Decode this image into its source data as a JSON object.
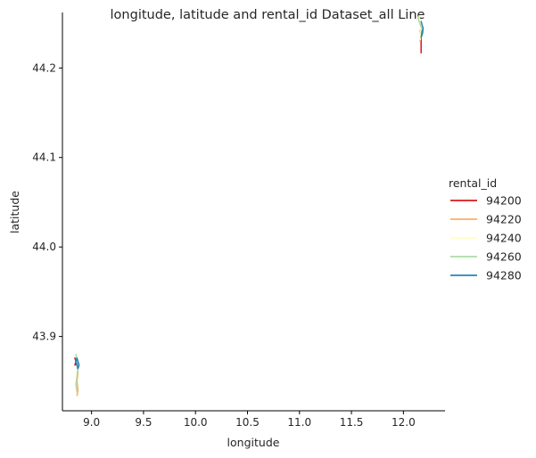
{
  "chart_data": {
    "type": "line",
    "title": "longitude, latitude and rental_id Dataset_all Line",
    "xlabel": "longitude",
    "ylabel": "latitude",
    "xlim": [
      8.72,
      12.4
    ],
    "ylim": [
      43.817,
      44.262
    ],
    "x_ticks": [
      9.0,
      9.5,
      10.0,
      10.5,
      11.0,
      11.5,
      12.0
    ],
    "x_tick_labels": [
      "9.0",
      "9.5",
      "10.0",
      "10.5",
      "11.0",
      "11.5",
      "12.0"
    ],
    "y_ticks": [
      43.9,
      44.0,
      44.1,
      44.2
    ],
    "y_tick_labels": [
      "43.9",
      "44.0",
      "44.1",
      "44.2"
    ],
    "grid": false,
    "legend": {
      "title": "rental_id",
      "placement": "outside right",
      "entries": [
        "94200",
        "94220",
        "94240",
        "94260",
        "94280"
      ]
    },
    "series": [
      {
        "name": "94200",
        "color": "#d7191c",
        "clusters": [
          {
            "x": [
              8.84,
              8.85,
              8.84,
              8.86,
              8.85
            ],
            "y": [
              43.876,
              43.872,
              43.868,
              43.87,
              43.874
            ]
          },
          {
            "x": [
              12.17,
              12.17,
              12.17
            ],
            "y": [
              44.236,
              44.226,
              44.217
            ]
          }
        ]
      },
      {
        "name": "94220",
        "color": "#fdae61",
        "clusters": [
          {
            "x": [
              8.86,
              8.87,
              8.86,
              8.87,
              8.86
            ],
            "y": [
              43.868,
              43.86,
              43.85,
              43.84,
              43.834
            ]
          },
          {
            "x": [
              12.16,
              12.17,
              12.16
            ],
            "y": [
              44.242,
              44.236,
              44.23
            ]
          }
        ]
      },
      {
        "name": "94240",
        "color": "#ffffbf",
        "clusters": [
          {
            "x": [
              8.86,
              8.87,
              8.86
            ],
            "y": [
              43.872,
              43.864,
              43.858
            ]
          },
          {
            "x": [
              12.15,
              12.16,
              12.17,
              12.16
            ],
            "y": [
              44.258,
              44.248,
              44.24,
              44.232
            ]
          }
        ]
      },
      {
        "name": "94260",
        "color": "#abdda4",
        "clusters": [
          {
            "x": [
              8.85,
              8.86,
              8.87,
              8.86,
              8.85,
              8.86
            ],
            "y": [
              43.88,
              43.874,
              43.866,
              43.856,
              43.846,
              43.838
            ]
          },
          {
            "x": [
              12.14,
              12.15,
              12.17,
              12.19,
              12.18
            ],
            "y": [
              44.256,
              44.252,
              44.246,
              44.24,
              44.236
            ]
          }
        ]
      },
      {
        "name": "94280",
        "color": "#2b83ba",
        "clusters": [
          {
            "x": [
              8.86,
              8.87,
              8.88,
              8.87,
              8.86,
              8.85,
              8.86
            ],
            "y": [
              43.876,
              43.872,
              43.868,
              43.864,
              43.868,
              43.872,
              43.876
            ]
          },
          {
            "x": [
              12.17,
              12.18,
              12.19,
              12.18,
              12.17,
              12.18
            ],
            "y": [
              44.252,
              44.248,
              44.244,
              44.238,
              44.234,
              44.242
            ]
          }
        ]
      }
    ]
  }
}
